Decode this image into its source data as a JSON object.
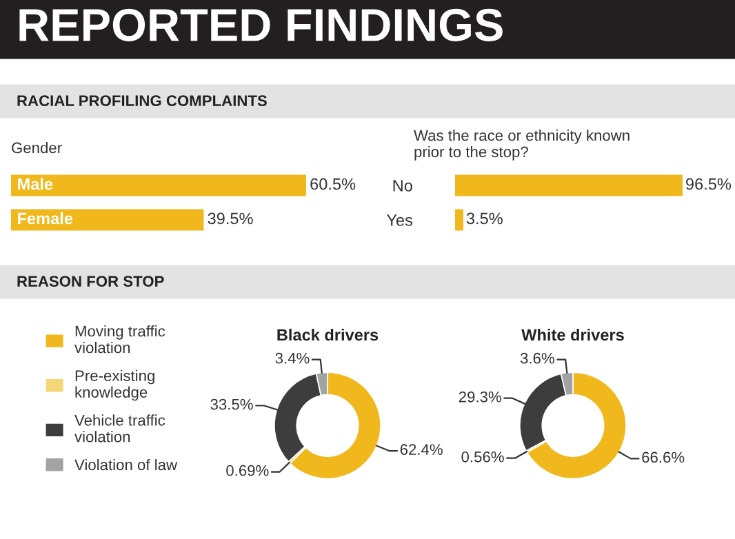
{
  "chart_data": [
    {
      "type": "bar",
      "orientation": "horizontal",
      "title": "Gender",
      "annotations": [
        "REPORTED FINDINGS",
        "RACIAL PROFILING COMPLAINTS"
      ],
      "categories": [
        "Male",
        "Female"
      ],
      "values": [
        60.5,
        39.5
      ],
      "value_labels": [
        "60.5%",
        "39.5%"
      ],
      "color": "#f0b81c"
    },
    {
      "type": "bar",
      "orientation": "horizontal",
      "title": "Was the race or ethnicity known prior to the stop?",
      "categories": [
        "No",
        "Yes"
      ],
      "values": [
        96.5,
        3.5
      ],
      "value_labels": [
        "96.5%",
        "3.5%"
      ],
      "color": "#f0b81c"
    },
    {
      "type": "donut",
      "title": "Black drivers",
      "annotations": [
        "REASON FOR STOP"
      ],
      "legend": "left",
      "categories": [
        "Moving traffic violation",
        "Pre-existing knowledge",
        "Vehicle traffic violation",
        "Violation of law"
      ],
      "values": [
        62.4,
        0.69,
        33.5,
        3.4
      ],
      "value_labels": [
        "62.4%",
        "0.69%",
        "33.5%",
        "3.4%"
      ],
      "colors": [
        "#f0b81c",
        "#f5d77a",
        "#3d3d3d",
        "#a3a3a3"
      ]
    },
    {
      "type": "donut",
      "title": "White drivers",
      "categories": [
        null,
        null,
        null,
        null
      ],
      "values": [
        66.6,
        0.56,
        29.3,
        3.6
      ],
      "value_labels": [
        "66.6%",
        "0.56%",
        "29.3%",
        "3.6%"
      ],
      "colors": [
        "#f0b81c",
        "#f5d77a",
        "#3d3d3d",
        "#a3a3a3"
      ]
    }
  ]
}
